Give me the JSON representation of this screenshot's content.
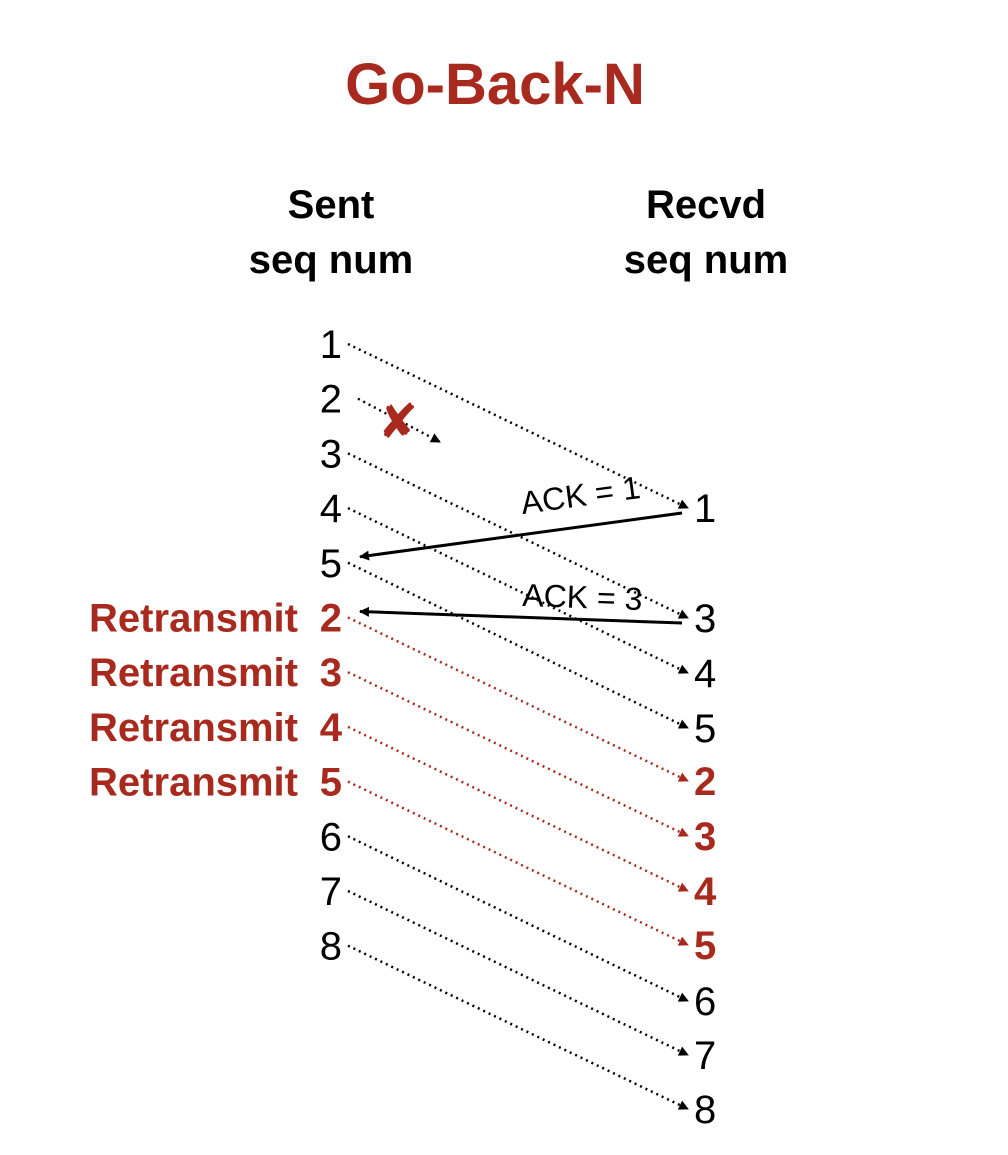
{
  "title": "Go-Back-N",
  "colors": {
    "accent": "#a82a1e",
    "normal": "#000000",
    "loss_mark": "#a82a1e"
  },
  "columns": {
    "sent_line1": "Sent",
    "sent_line2": "seq num",
    "recvd_line1": "Recvd",
    "recvd_line2": "seq num"
  },
  "sent": [
    {
      "label": "1",
      "retransmit": false
    },
    {
      "label": "2",
      "retransmit": false
    },
    {
      "label": "3",
      "retransmit": false
    },
    {
      "label": "4",
      "retransmit": false
    },
    {
      "label": "5",
      "retransmit": false
    },
    {
      "label": "2",
      "retransmit": true,
      "prefix": "Retransmit"
    },
    {
      "label": "3",
      "retransmit": true,
      "prefix": "Retransmit"
    },
    {
      "label": "4",
      "retransmit": true,
      "prefix": "Retransmit"
    },
    {
      "label": "5",
      "retransmit": true,
      "prefix": "Retransmit"
    },
    {
      "label": "6",
      "retransmit": false
    },
    {
      "label": "7",
      "retransmit": false
    },
    {
      "label": "8",
      "retransmit": false
    }
  ],
  "received": [
    {
      "label": "1",
      "retransmit": false
    },
    {
      "label": "3",
      "retransmit": false
    },
    {
      "label": "4",
      "retransmit": false
    },
    {
      "label": "5",
      "retransmit": false
    },
    {
      "label": "2",
      "retransmit": true
    },
    {
      "label": "3",
      "retransmit": true
    },
    {
      "label": "4",
      "retransmit": true
    },
    {
      "label": "5",
      "retransmit": true
    },
    {
      "label": "6",
      "retransmit": false
    },
    {
      "label": "7",
      "retransmit": false
    },
    {
      "label": "8",
      "retransmit": false
    }
  ],
  "transmissions": [
    {
      "from_sent": 0,
      "to_received": 0,
      "lost": false
    },
    {
      "from_sent": 1,
      "to_received": null,
      "lost": true
    },
    {
      "from_sent": 2,
      "to_received": 1,
      "lost": false
    },
    {
      "from_sent": 3,
      "to_received": 2,
      "lost": false
    },
    {
      "from_sent": 4,
      "to_received": 3,
      "lost": false
    },
    {
      "from_sent": 5,
      "to_received": 4,
      "lost": false
    },
    {
      "from_sent": 6,
      "to_received": 5,
      "lost": false
    },
    {
      "from_sent": 7,
      "to_received": 6,
      "lost": false
    },
    {
      "from_sent": 8,
      "to_received": 7,
      "lost": false
    },
    {
      "from_sent": 9,
      "to_received": 8,
      "lost": false
    },
    {
      "from_sent": 10,
      "to_received": 9,
      "lost": false
    },
    {
      "from_sent": 11,
      "to_received": 10,
      "lost": false
    }
  ],
  "acks": [
    {
      "label": "ACK = 1",
      "from_received": 0,
      "to_sent": 4
    },
    {
      "label": "ACK = 3",
      "from_received": 1,
      "to_sent": 5
    }
  ],
  "loss_marker": "✘"
}
